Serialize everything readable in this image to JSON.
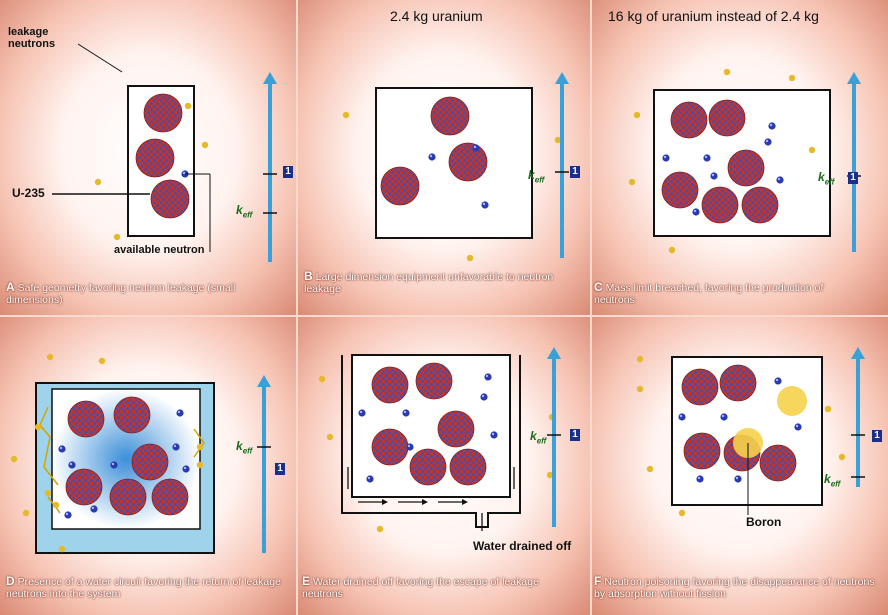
{
  "colors": {
    "arrow": "#3aa0d8",
    "neutron_free": "#e6b92a",
    "neutron_available": "#2a3ab0",
    "uranium_red": "#c0342b",
    "uranium_blue": "#3c4fb8",
    "water": "#9fd3ec",
    "boron": "#f5d24a",
    "box": "#111111"
  },
  "header": {
    "title_b": "2.4 kg uranium",
    "title_c": "16 kg of uranium instead of 2.4 kg"
  },
  "panel_a": {
    "leakage_label": "leakage neutrons",
    "u235_label": "U-235",
    "available_label": "available neutron",
    "keff_label": "k",
    "keff_sub": "eff",
    "one": "1",
    "letter": "A",
    "caption": "Safe geometry favoring neutron leakage (small dimensions)"
  },
  "panel_b": {
    "keff_label": "k",
    "keff_sub": "eff",
    "one": "1",
    "letter": "B",
    "caption": "Large dimension equipment unfavorable to neutron leakage"
  },
  "panel_c": {
    "keff_label": "k",
    "keff_sub": "eff",
    "one": "1",
    "letter": "C",
    "caption": "Mass limit breached, favoring the production of neutrons"
  },
  "panel_d": {
    "keff_label": "k",
    "keff_sub": "eff",
    "one": "1",
    "letter": "D",
    "caption": "Presence of a water circuit favoring the return of leakage neutrons into the system"
  },
  "panel_e": {
    "keff_label": "k",
    "keff_sub": "eff",
    "one": "1",
    "water_label": "Water drained off",
    "letter": "E",
    "caption": "Water drained off favoring the escape of leakage neutrons"
  },
  "panel_f": {
    "keff_label": "k",
    "keff_sub": "eff",
    "one": "1",
    "boron_label": "Boron",
    "letter": "F",
    "caption": "Neutron poisoning favoring the disappearance of neutrons by absorption without fission"
  }
}
